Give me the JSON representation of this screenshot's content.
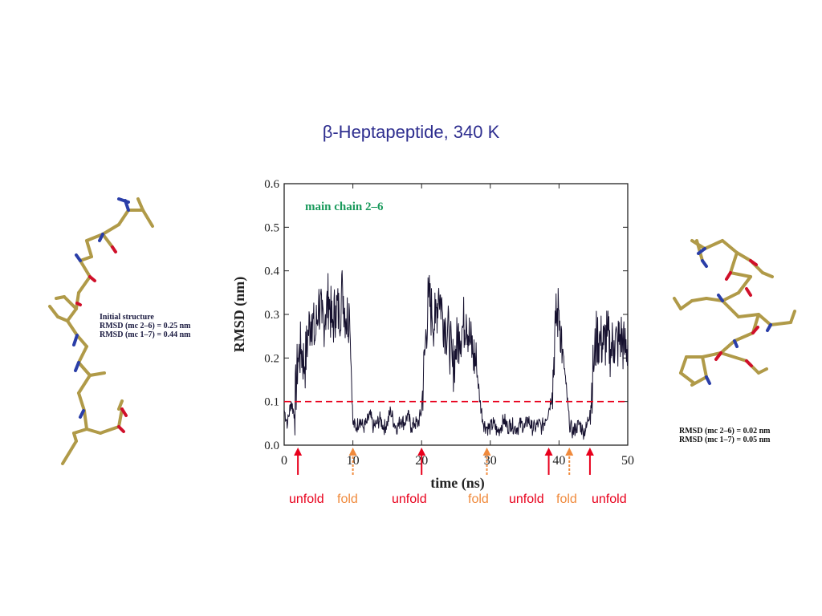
{
  "slide": {
    "title": "β-Heptapeptide, 340 K"
  },
  "left_molecule": {
    "caption": [
      "Initial structure",
      "RMSD (mc 2–6) = 0.25 nm",
      "RMSD (mc 1–7) = 0.44 nm"
    ]
  },
  "right_molecule": {
    "caption": [
      "RMSD (mc 2–6) = 0.02 nm",
      "RMSD (mc 1–7) = 0.05 nm"
    ]
  },
  "colors": {
    "trace": "#15102e",
    "threshold": "#e8001c",
    "unfold": "#e8001c",
    "fold": "#f08a3c",
    "chart_label": "#1a9a5c",
    "stick": "#b09a48",
    "oxygen": "#d0102a",
    "nitrogen": "#2a3ea8"
  },
  "events": [
    {
      "time": 2,
      "kind": "unfold",
      "label": "unfold"
    },
    {
      "time": 10,
      "kind": "fold",
      "label": "fold"
    },
    {
      "time": 20,
      "kind": "unfold",
      "label": "unfold"
    },
    {
      "time": 29.5,
      "kind": "fold",
      "label": "fold"
    },
    {
      "time": 38.5,
      "kind": "unfold",
      "label": "unfold"
    },
    {
      "time": 41.5,
      "kind": "fold",
      "label": "fold"
    },
    {
      "time": 44.5,
      "kind": "unfold",
      "label": "unfold"
    }
  ],
  "chart_data": {
    "type": "line",
    "title": "",
    "annotation": "main chain 2–6",
    "xlabel": "time (ns)",
    "ylabel": "RMSD (nm)",
    "xlim": [
      0,
      50
    ],
    "ylim": [
      0,
      0.6
    ],
    "xticks": [
      0,
      10,
      20,
      30,
      40,
      50
    ],
    "yticks": [
      0.0,
      0.1,
      0.2,
      0.3,
      0.4,
      0.5,
      0.6
    ],
    "ytick_labels": [
      "0.0",
      "0.1",
      "0.2",
      "0.3",
      "0.4",
      "0.5",
      "0.6"
    ],
    "threshold": 0.1,
    "series": [
      {
        "x": [
          0,
          0.5,
          1,
          1.5,
          2,
          2.5,
          3,
          3.5,
          4,
          4.5,
          5,
          5.5,
          6,
          6.5,
          7,
          7.5,
          8,
          8.5,
          9,
          9.5,
          10,
          10.5,
          11,
          11.5,
          12,
          12.5,
          13,
          13.5,
          14,
          14.5,
          15,
          15.5,
          16,
          16.5,
          17,
          17.5,
          18,
          18.5,
          19,
          19.5,
          20,
          20.5,
          21,
          21.5,
          22,
          22.5,
          23,
          23.5,
          24,
          24.5,
          25,
          25.5,
          26,
          26.5,
          27,
          27.5,
          28,
          28.5,
          29,
          29.5,
          30,
          30.5,
          31,
          31.5,
          32,
          32.5,
          33,
          33.5,
          34,
          34.5,
          35,
          35.5,
          36,
          36.5,
          37,
          37.5,
          38,
          38.5,
          39,
          39.5,
          40,
          40.5,
          41,
          41.5,
          42,
          42.5,
          43,
          43.5,
          44,
          44.5,
          45,
          45.5,
          46,
          46.5,
          47,
          47.5,
          48,
          48.5,
          49,
          49.5,
          50
        ],
        "y": [
          0.08,
          0.05,
          0.1,
          0.07,
          0.2,
          0.22,
          0.18,
          0.26,
          0.3,
          0.24,
          0.33,
          0.28,
          0.3,
          0.34,
          0.27,
          0.32,
          0.3,
          0.36,
          0.29,
          0.31,
          0.05,
          0.04,
          0.06,
          0.04,
          0.05,
          0.07,
          0.04,
          0.05,
          0.06,
          0.04,
          0.05,
          0.08,
          0.05,
          0.04,
          0.06,
          0.05,
          0.07,
          0.04,
          0.05,
          0.05,
          0.08,
          0.22,
          0.34,
          0.3,
          0.28,
          0.36,
          0.31,
          0.27,
          0.25,
          0.18,
          0.22,
          0.26,
          0.27,
          0.3,
          0.24,
          0.21,
          0.18,
          0.1,
          0.05,
          0.04,
          0.04,
          0.05,
          0.03,
          0.04,
          0.06,
          0.04,
          0.05,
          0.04,
          0.04,
          0.05,
          0.04,
          0.06,
          0.04,
          0.04,
          0.05,
          0.04,
          0.06,
          0.08,
          0.12,
          0.28,
          0.31,
          0.22,
          0.14,
          0.05,
          0.03,
          0.04,
          0.05,
          0.03,
          0.04,
          0.08,
          0.18,
          0.25,
          0.24,
          0.23,
          0.25,
          0.22,
          0.24,
          0.23,
          0.25,
          0.22,
          0.23
        ]
      }
    ]
  }
}
